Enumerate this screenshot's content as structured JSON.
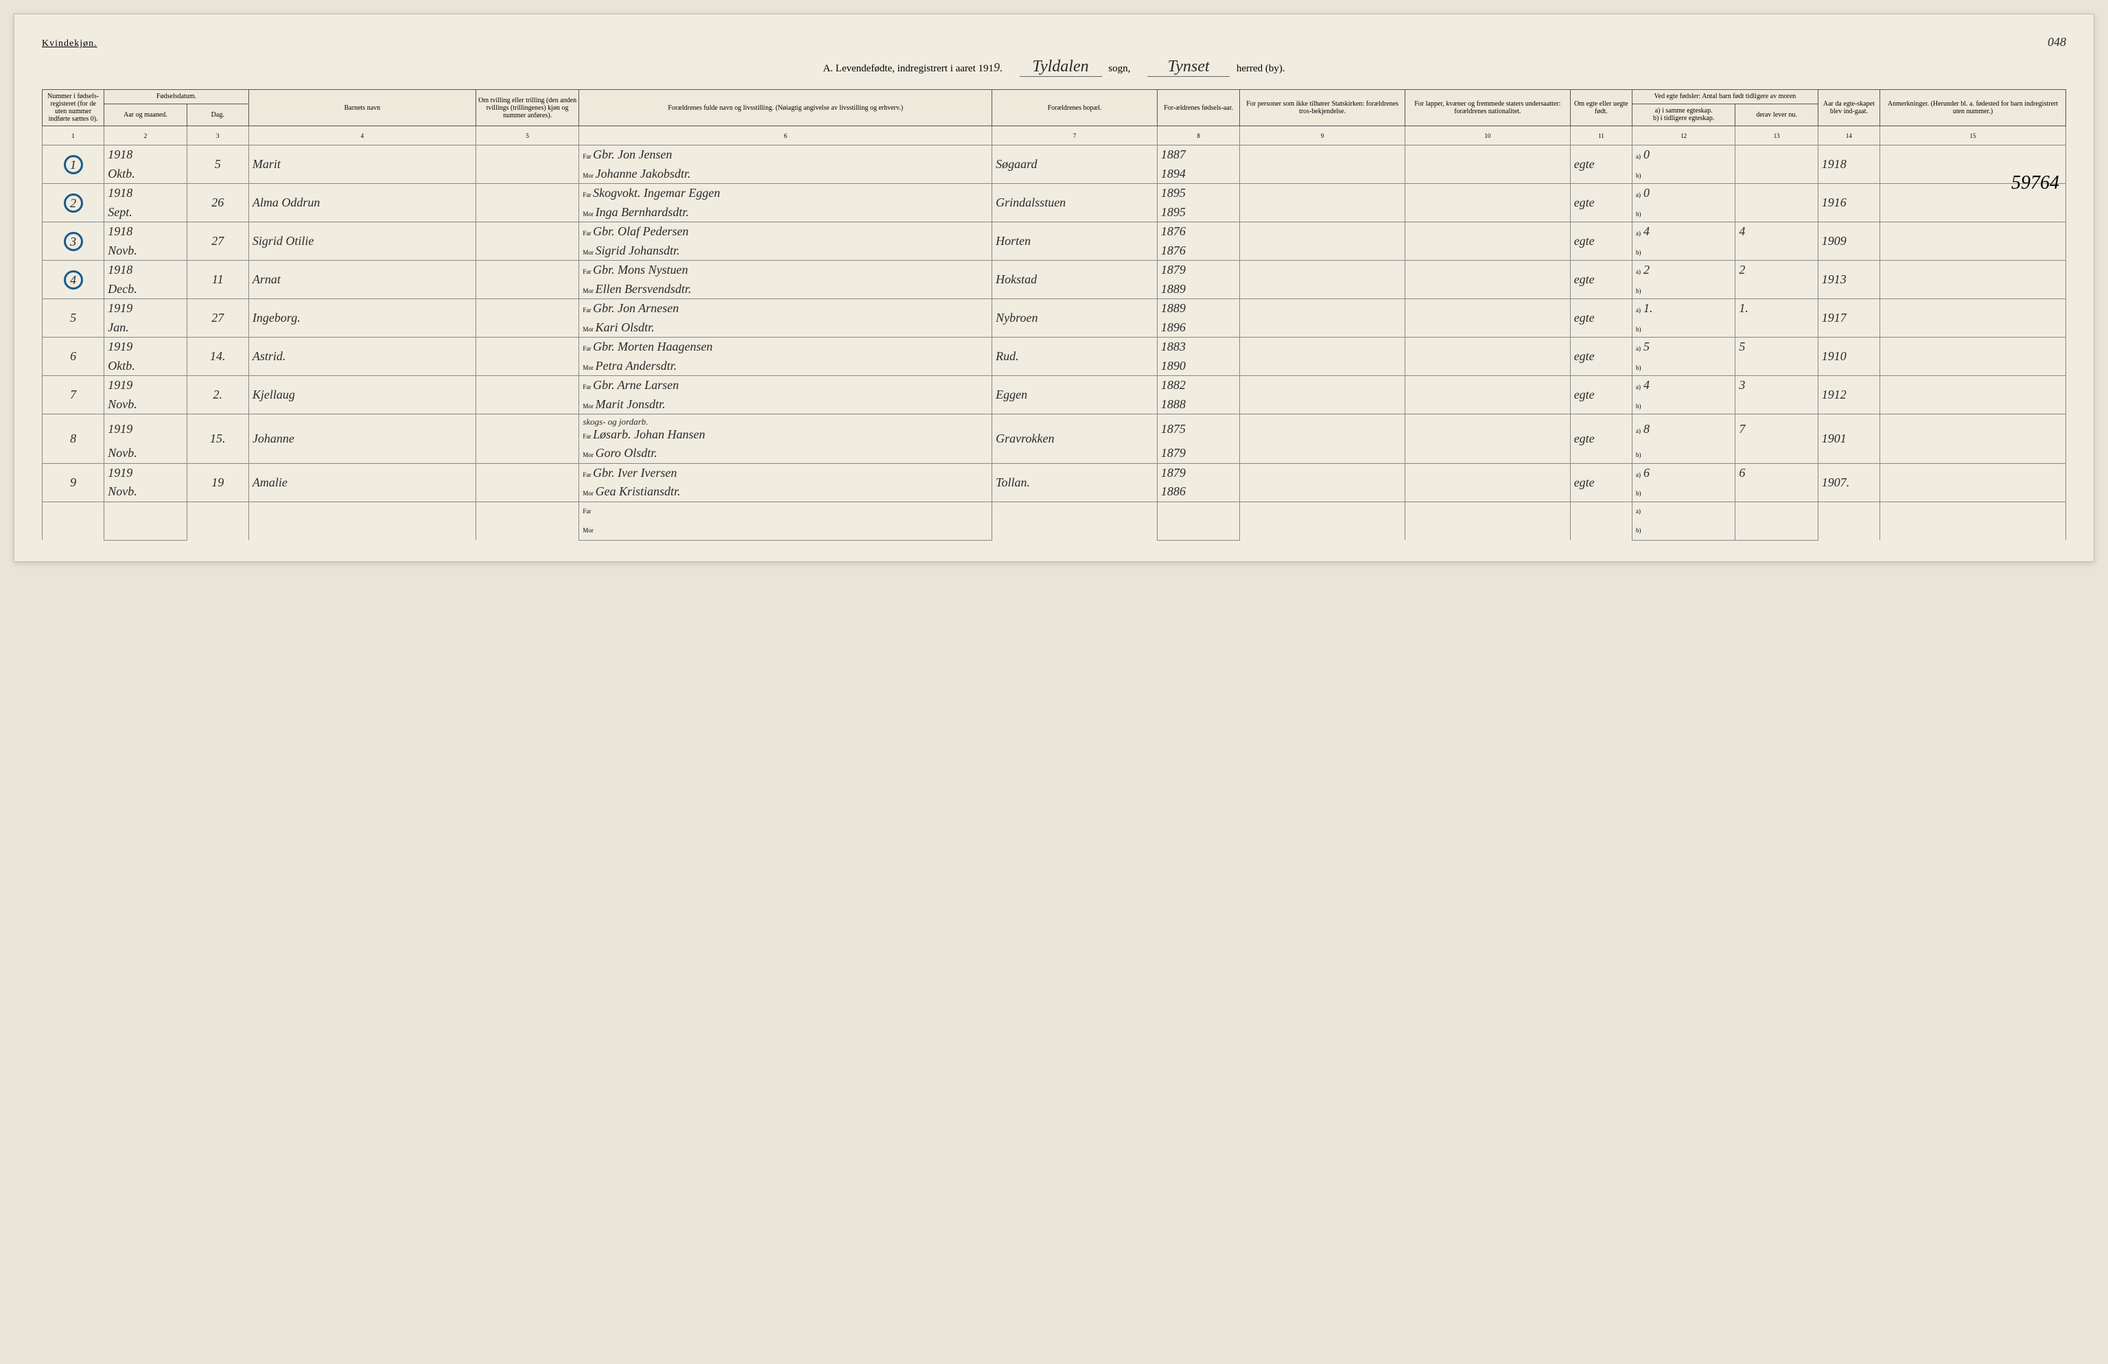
{
  "header": {
    "gender": "Kvindekjøn.",
    "page_number": "048",
    "title_prefix": "A. Levendefødte, indregistrert i aaret 191",
    "year_digit": "9",
    "sogn_value": "Tyldalen",
    "sogn_label": "sogn,",
    "herred_value": "Tynset",
    "herred_label": "herred (by)."
  },
  "margin_note": "59764",
  "columns": {
    "c1": "Nummer i fødsels-registeret (for de uten nummer indførte sættes 0).",
    "c2": "Fødselsdatum.",
    "c2a": "Aar og maaned.",
    "c2b": "Dag.",
    "c4": "Barnets navn",
    "c5": "Om tvilling eller trilling (den anden tvillings (trillingenes) kjøn og nummer anføres).",
    "c6": "Forældrenes fulde navn og livsstilling. (Nøiagtig angivelse av livsstilling og erhverv.)",
    "c7": "Forældrenes bopæl.",
    "c8": "For-ældrenes fødsels-aar.",
    "c9": "For personer som ikke tilhører Statskirken: forældrenes tros-bekjendelse.",
    "c10": "For lapper, kvæner og fremmede staters undersaatter: forældrenes nationalitet.",
    "c11": "Om egte eller uegte født.",
    "c12": "Ved egte fødsler: Antal barn født tidligere av moren",
    "c12a": "a) i samme egteskap.",
    "c12b": "b) i tidligere egteskap.",
    "c13": "derav lever nu.",
    "c14": "Aar da egte-skapet blev ind-gaat.",
    "c15": "Anmerkninger. (Herunder bl. a. fødested for barn indregistrert uten nummer.)",
    "far": "Far",
    "mor": "Mor",
    "a_lbl": "a)",
    "b_lbl": "b)"
  },
  "colnums": [
    "1",
    "2",
    "3",
    "4",
    "5",
    "6",
    "7",
    "8",
    "9",
    "10",
    "11",
    "12",
    "13",
    "14",
    "15"
  ],
  "rows": [
    {
      "num": "1",
      "circled": true,
      "year": "1918",
      "month": "Oktb.",
      "day": "5",
      "name": "Marit",
      "far": "Gbr. Jon Jensen",
      "mor": "Johanne Jakobsdtr.",
      "bopel": "Søgaard",
      "faar": "1887",
      "maar": "1894",
      "egte": "egte",
      "a": "0",
      "b": "",
      "derav": "",
      "egtaar": "1918",
      "anm": ""
    },
    {
      "num": "2",
      "circled": true,
      "year": "1918",
      "month": "Sept.",
      "day": "26",
      "name": "Alma Oddrun",
      "far": "Skogvokt. Ingemar Eggen",
      "mor": "Inga Bernhardsdtr.",
      "bopel": "Grindalsstuen",
      "faar": "1895",
      "maar": "1895",
      "egte": "egte",
      "a": "0",
      "b": "",
      "derav": "",
      "egtaar": "1916",
      "anm": ""
    },
    {
      "num": "3",
      "circled": true,
      "year": "1918",
      "month": "Novb.",
      "day": "27",
      "name": "Sigrid Otilie",
      "far": "Gbr. Olaf Pedersen",
      "mor": "Sigrid Johansdtr.",
      "bopel": "Horten",
      "faar": "1876",
      "maar": "1876",
      "egte": "egte",
      "a": "4",
      "b": "",
      "derav": "4",
      "egtaar": "1909",
      "anm": ""
    },
    {
      "num": "4",
      "circled": true,
      "year": "1918",
      "month": "Decb.",
      "day": "11",
      "name": "Arnat",
      "far": "Gbr. Mons Nystuen",
      "mor": "Ellen Bersvendsdtr.",
      "bopel": "Hokstad",
      "faar": "1879",
      "maar": "1889",
      "egte": "egte",
      "a": "2",
      "b": "",
      "derav": "2",
      "egtaar": "1913",
      "anm": ""
    },
    {
      "num": "5",
      "circled": false,
      "year": "1919",
      "month": "Jan.",
      "day": "27",
      "name": "Ingeborg.",
      "far": "Gbr. Jon Arnesen",
      "mor": "Kari Olsdtr.",
      "bopel": "Nybroen",
      "faar": "1889",
      "maar": "1896",
      "egte": "egte",
      "a": "1.",
      "b": "",
      "derav": "1.",
      "egtaar": "1917",
      "anm": ""
    },
    {
      "num": "6",
      "circled": false,
      "year": "1919",
      "month": "Oktb.",
      "day": "14.",
      "name": "Astrid.",
      "far": "Gbr. Morten Haagensen",
      "mor": "Petra Andersdtr.",
      "bopel": "Rud.",
      "faar": "1883",
      "maar": "1890",
      "egte": "egte",
      "a": "5",
      "b": "",
      "derav": "5",
      "egtaar": "1910",
      "anm": ""
    },
    {
      "num": "7",
      "circled": false,
      "year": "1919",
      "month": "Novb.",
      "day": "2.",
      "name": "Kjellaug",
      "far": "Gbr. Arne Larsen",
      "mor": "Marit Jonsdtr.",
      "bopel": "Eggen",
      "faar": "1882",
      "maar": "1888",
      "egte": "egte",
      "a": "4",
      "b": "",
      "derav": "3",
      "egtaar": "1912",
      "anm": ""
    },
    {
      "num": "8",
      "circled": false,
      "year": "1919",
      "month": "Novb.",
      "day": "15.",
      "name": "Johanne",
      "far": "Løsarb. Johan Hansen",
      "far_note": "skogs- og jordarb.",
      "mor": "Goro Olsdtr.",
      "bopel": "Gravrokken",
      "faar": "1875",
      "maar": "1879",
      "egte": "egte",
      "a": "8",
      "b": "",
      "derav": "7",
      "egtaar": "1901",
      "anm": ""
    },
    {
      "num": "9",
      "circled": false,
      "year": "1919",
      "month": "Novb.",
      "day": "19",
      "name": "Amalie",
      "far": "Gbr. Iver Iversen",
      "mor": "Gea Kristiansdtr.",
      "bopel": "Tollan.",
      "faar": "1879",
      "maar": "1886",
      "egte": "egte",
      "a": "6",
      "b": "",
      "derav": "6",
      "egtaar": "1907.",
      "anm": ""
    }
  ]
}
